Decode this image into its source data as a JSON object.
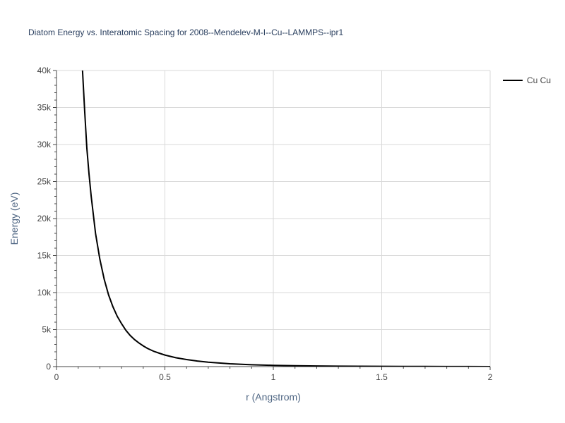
{
  "chart_data": {
    "type": "line",
    "title": "Diatom Energy vs. Interatomic Spacing for 2008--Mendelev-M-I--Cu--LAMMPS--ipr1",
    "xlabel": "r (Angstrom)",
    "ylabel": "Energy (eV)",
    "xlim": [
      0,
      2
    ],
    "ylim": [
      0,
      40000
    ],
    "x_ticks": [
      0,
      0.5,
      1,
      1.5,
      2
    ],
    "x_tick_labels": [
      "0",
      "0.5",
      "1",
      "1.5",
      "2"
    ],
    "y_ticks": [
      0,
      5000,
      10000,
      15000,
      20000,
      25000,
      30000,
      35000,
      40000
    ],
    "y_tick_labels": [
      "0",
      "5k",
      "10k",
      "15k",
      "20k",
      "25k",
      "30k",
      "35k",
      "40k"
    ],
    "grid": true,
    "legend_position": "top-right",
    "line_color": "#000000",
    "series": [
      {
        "name": "Cu Cu",
        "x": [
          0.12,
          0.13,
          0.14,
          0.15,
          0.16,
          0.18,
          0.2,
          0.22,
          0.24,
          0.26,
          0.28,
          0.3,
          0.32,
          0.34,
          0.36,
          0.38,
          0.4,
          0.42,
          0.45,
          0.48,
          0.5,
          0.55,
          0.6,
          0.65,
          0.7,
          0.8,
          0.9,
          1.0,
          1.1,
          1.2,
          1.3,
          1.4,
          1.5,
          1.6,
          1.7,
          1.8,
          1.9,
          2.0
        ],
        "values": [
          40000,
          34500,
          29500,
          26000,
          23000,
          18000,
          14500,
          11800,
          9700,
          8100,
          6800,
          5800,
          4900,
          4200,
          3650,
          3200,
          2800,
          2450,
          2050,
          1750,
          1560,
          1200,
          950,
          750,
          600,
          380,
          250,
          170,
          120,
          85,
          60,
          45,
          35,
          25,
          18,
          12,
          8,
          5
        ]
      }
    ]
  }
}
